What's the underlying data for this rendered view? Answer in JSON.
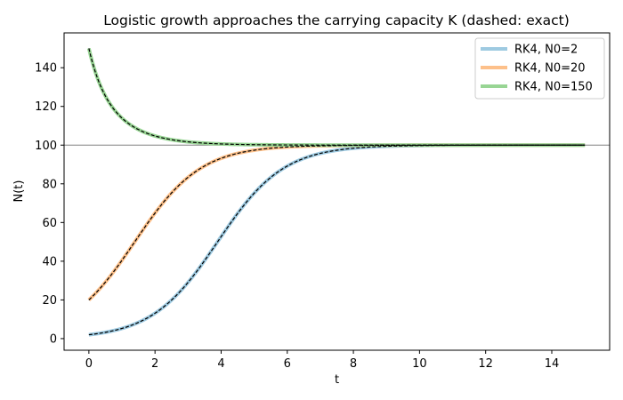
{
  "chart_data": {
    "type": "line",
    "title": "Logistic growth approaches the carrying capacity K (dashed: exact)",
    "xlabel": "t",
    "ylabel": "N(t)",
    "xlim": [
      -0.75,
      15.75
    ],
    "ylim": [
      -6,
      158
    ],
    "xticks": [
      0,
      2,
      4,
      6,
      8,
      10,
      12,
      14
    ],
    "yticks": [
      0,
      20,
      40,
      60,
      80,
      100,
      120,
      140
    ],
    "grid": false,
    "legend_position": "top-right",
    "reference_line": {
      "y": 100,
      "color": "#808080"
    },
    "model": {
      "K": 100,
      "r": 1,
      "t_start": 0,
      "t_end": 15
    },
    "exact_style": {
      "color": "#000000",
      "dashed": true
    },
    "series": [
      {
        "name": "RK4, N0=2",
        "N0": 2,
        "color": "#9ecae1"
      },
      {
        "name": "RK4, N0=20",
        "N0": 20,
        "color": "#fdc08a"
      },
      {
        "name": "RK4, N0=150",
        "N0": 150,
        "color": "#98d594"
      }
    ]
  }
}
